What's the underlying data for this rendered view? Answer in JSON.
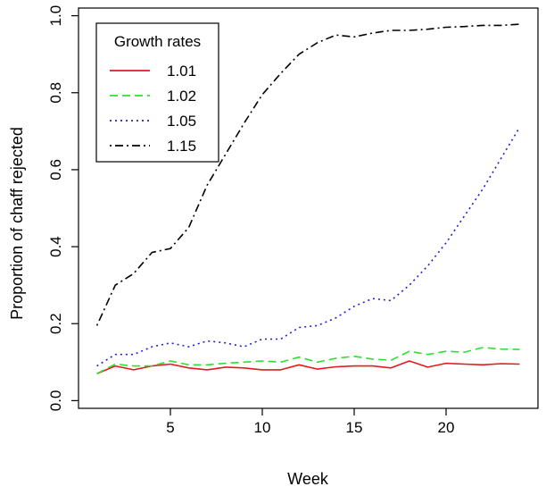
{
  "chart_data": {
    "type": "line",
    "xlabel": "Week",
    "ylabel": "Proportion of chaff rejected",
    "xlim": [
      0,
      25
    ],
    "ylim": [
      -0.02,
      1.02
    ],
    "x_ticks": [
      5,
      10,
      15,
      20
    ],
    "y_ticks": [
      0.0,
      0.2,
      0.4,
      0.6,
      0.8,
      1.0
    ],
    "y_tick_labels": [
      "0.0",
      "0.2",
      "0.4",
      "0.6",
      "0.8",
      "1.0"
    ],
    "grid": false,
    "legend": {
      "title": "Growth rates",
      "position": "top-left"
    },
    "x": [
      1,
      2,
      3,
      4,
      5,
      6,
      7,
      8,
      9,
      10,
      11,
      12,
      13,
      14,
      15,
      16,
      17,
      18,
      19,
      20,
      21,
      22,
      23,
      24
    ],
    "series": [
      {
        "name": "1.01",
        "color": "#e41a1c",
        "dash": "solid",
        "values": [
          0.07,
          0.09,
          0.08,
          0.09,
          0.095,
          0.085,
          0.08,
          0.087,
          0.085,
          0.08,
          0.08,
          0.093,
          0.082,
          0.088,
          0.09,
          0.09,
          0.085,
          0.103,
          0.087,
          0.097,
          0.095,
          0.093,
          0.096,
          0.095
        ]
      },
      {
        "name": "1.02",
        "color": "#2ee02e",
        "dash": "dashed",
        "values": [
          0.07,
          0.095,
          0.09,
          0.09,
          0.103,
          0.093,
          0.093,
          0.097,
          0.1,
          0.103,
          0.1,
          0.113,
          0.1,
          0.11,
          0.115,
          0.108,
          0.105,
          0.128,
          0.12,
          0.128,
          0.126,
          0.138,
          0.134,
          0.133
        ]
      },
      {
        "name": "1.05",
        "color": "#1f1fd6",
        "dash": "dotted",
        "values": [
          0.09,
          0.12,
          0.12,
          0.14,
          0.15,
          0.14,
          0.155,
          0.15,
          0.14,
          0.16,
          0.16,
          0.19,
          0.195,
          0.215,
          0.245,
          0.265,
          0.26,
          0.3,
          0.35,
          0.41,
          0.48,
          0.55,
          0.63,
          0.71
        ]
      },
      {
        "name": "1.15",
        "color": "#000000",
        "dash": "dotdash",
        "values": [
          0.195,
          0.3,
          0.33,
          0.385,
          0.395,
          0.45,
          0.56,
          0.64,
          0.72,
          0.795,
          0.85,
          0.9,
          0.93,
          0.95,
          0.945,
          0.955,
          0.962,
          0.962,
          0.965,
          0.97,
          0.972,
          0.975,
          0.975,
          0.978
        ]
      }
    ]
  }
}
